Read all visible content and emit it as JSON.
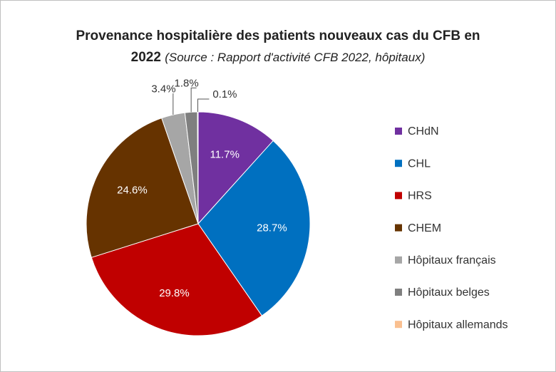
{
  "chart_data": {
    "type": "pie",
    "title": "Provenance hospitalière des patients nouveaux cas du CFB en 2022",
    "subtitle": "(Source : Rapport d'activité CFB 2022, hôpitaux)",
    "categories": [
      "CHdN",
      "CHL",
      "HRS",
      "CHEM",
      "Hôpitaux français",
      "Hôpitaux belges",
      "Hôpitaux allemands"
    ],
    "values": [
      11.7,
      28.7,
      29.8,
      24.6,
      3.4,
      1.8,
      0.1
    ],
    "value_labels": [
      "11.7%",
      "28.7%",
      "29.8%",
      "24.6%",
      "3.4%",
      "1.8%",
      "0.1%"
    ],
    "colors": [
      "#7030a0",
      "#0070c0",
      "#c00000",
      "#663300",
      "#a6a6a6",
      "#7f7f7f",
      "#fac090"
    ],
    "legend": "right"
  }
}
